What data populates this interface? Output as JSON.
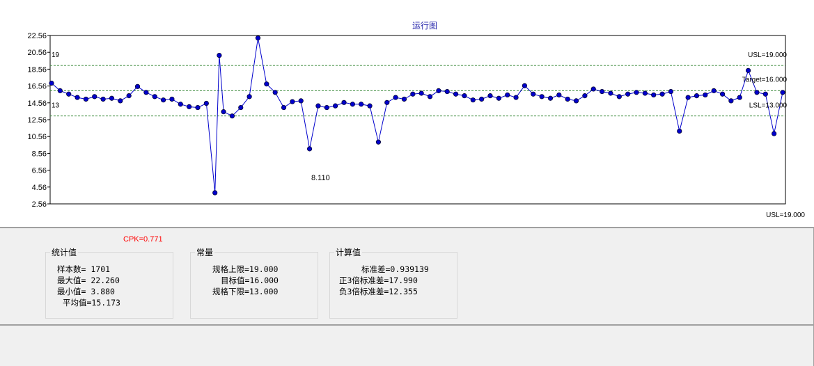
{
  "chart_data": {
    "type": "line",
    "title": "运行图",
    "y_ticks": [
      "22.56",
      "20.56",
      "18.56",
      "16.56",
      "14.56",
      "12.56",
      "10.56",
      "8.56",
      "6.56",
      "4.56",
      "2.56"
    ],
    "ylim": [
      2.56,
      22.56
    ],
    "n_samples": 1701,
    "reference_lines": {
      "usl": 19.0,
      "target": 16.0,
      "lsl": 13.0
    },
    "left_labels": {
      "upper": "19",
      "lower": "13"
    },
    "right_labels": {
      "usl": "USL=19.000",
      "target": "Target=16.000",
      "lsl": "LSL=13.000",
      "bottom": "USL=19.000"
    },
    "annotation": "8.110",
    "series": [
      {
        "color": "#0000cc",
        "values": [
          [
            0,
            16.9
          ],
          [
            20,
            16.0
          ],
          [
            40,
            15.6
          ],
          [
            60,
            15.2
          ],
          [
            80,
            15.0
          ],
          [
            100,
            15.3
          ],
          [
            120,
            15.0
          ],
          [
            140,
            15.1
          ],
          [
            160,
            14.8
          ],
          [
            180,
            15.4
          ],
          [
            200,
            16.5
          ],
          [
            220,
            15.8
          ],
          [
            240,
            15.3
          ],
          [
            260,
            14.9
          ],
          [
            280,
            15.0
          ],
          [
            300,
            14.4
          ],
          [
            320,
            14.1
          ],
          [
            340,
            14.0
          ],
          [
            360,
            14.5
          ],
          [
            380,
            3.88
          ],
          [
            390,
            20.2
          ],
          [
            400,
            13.5
          ],
          [
            420,
            13.0
          ],
          [
            440,
            14.0
          ],
          [
            460,
            15.3
          ],
          [
            480,
            22.26
          ],
          [
            500,
            16.8
          ],
          [
            520,
            15.8
          ],
          [
            540,
            14.0
          ],
          [
            560,
            14.7
          ],
          [
            580,
            14.8
          ],
          [
            600,
            9.1
          ],
          [
            620,
            14.2
          ],
          [
            640,
            14.0
          ],
          [
            660,
            14.2
          ],
          [
            680,
            14.6
          ],
          [
            700,
            14.4
          ],
          [
            720,
            14.4
          ],
          [
            740,
            14.2
          ],
          [
            760,
            9.9
          ],
          [
            780,
            14.6
          ],
          [
            800,
            15.2
          ],
          [
            820,
            15.0
          ],
          [
            840,
            15.6
          ],
          [
            860,
            15.7
          ],
          [
            880,
            15.3
          ],
          [
            900,
            16.0
          ],
          [
            920,
            15.9
          ],
          [
            940,
            15.6
          ],
          [
            960,
            15.4
          ],
          [
            980,
            14.9
          ],
          [
            1000,
            15.0
          ],
          [
            1020,
            15.4
          ],
          [
            1040,
            15.1
          ],
          [
            1060,
            15.5
          ],
          [
            1080,
            15.2
          ],
          [
            1100,
            16.6
          ],
          [
            1120,
            15.6
          ],
          [
            1140,
            15.3
          ],
          [
            1160,
            15.1
          ],
          [
            1180,
            15.5
          ],
          [
            1200,
            15.0
          ],
          [
            1220,
            14.8
          ],
          [
            1240,
            15.4
          ],
          [
            1260,
            16.2
          ],
          [
            1280,
            15.9
          ],
          [
            1300,
            15.7
          ],
          [
            1320,
            15.3
          ],
          [
            1340,
            15.6
          ],
          [
            1360,
            15.8
          ],
          [
            1380,
            15.7
          ],
          [
            1400,
            15.5
          ],
          [
            1420,
            15.6
          ],
          [
            1440,
            15.9
          ],
          [
            1460,
            11.2
          ],
          [
            1480,
            15.2
          ],
          [
            1500,
            15.4
          ],
          [
            1520,
            15.5
          ],
          [
            1540,
            16.0
          ],
          [
            1560,
            15.6
          ],
          [
            1580,
            14.8
          ],
          [
            1600,
            15.2
          ],
          [
            1620,
            18.4
          ],
          [
            1640,
            15.8
          ],
          [
            1660,
            15.6
          ],
          [
            1680,
            10.9
          ],
          [
            1700,
            15.8
          ]
        ]
      }
    ]
  },
  "cpk": "CPK=0.771",
  "groups": {
    "stats": {
      "title": "统计值",
      "lines": [
        "样本数= 1701",
        "最大值= 22.260",
        "最小值= 3.880",
        "平均值=15.173"
      ]
    },
    "constants": {
      "title": "常量",
      "lines": [
        "规格上限=19.000",
        "目标值=16.000",
        "规格下限=13.000"
      ]
    },
    "computed": {
      "title": "计算值",
      "lines": [
        "标准差=0.939139",
        "正3倍标准差=17.990",
        "负3倍标准差=12.355"
      ]
    }
  }
}
